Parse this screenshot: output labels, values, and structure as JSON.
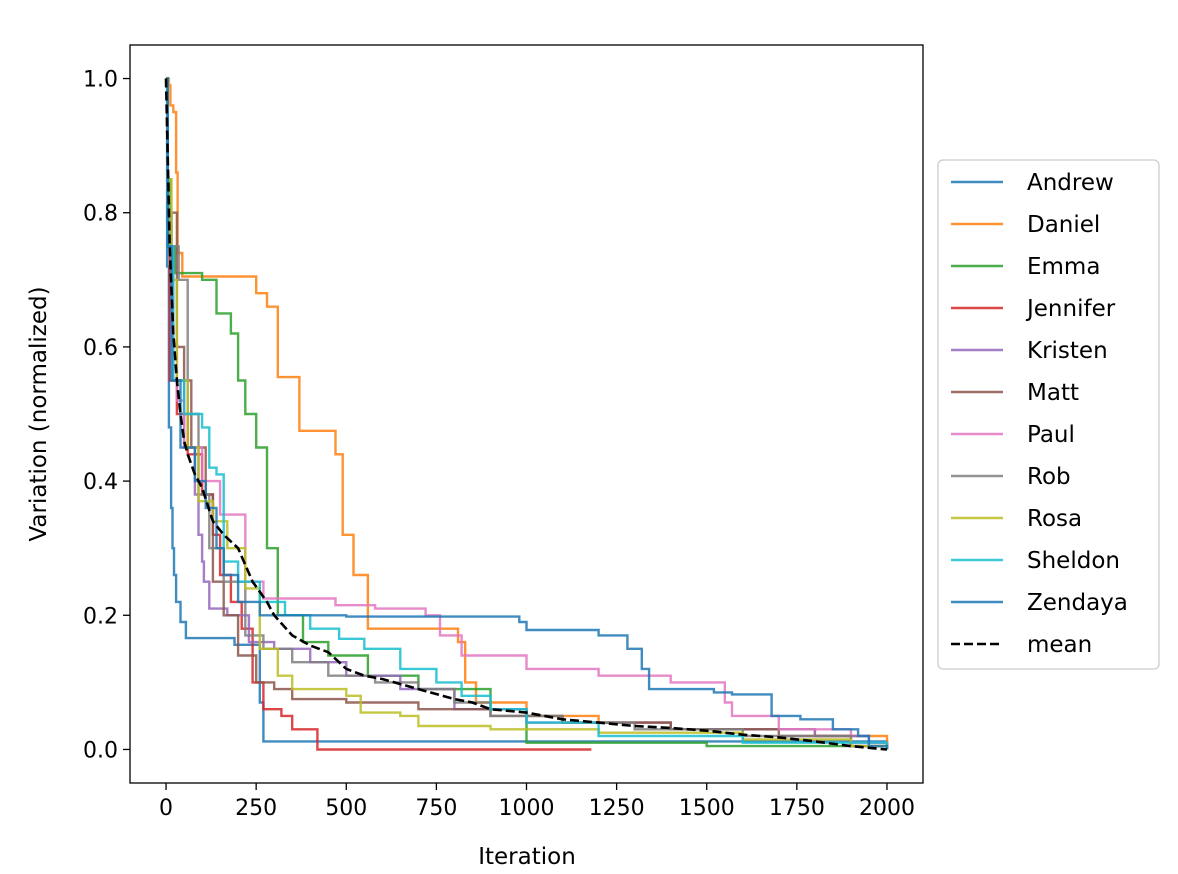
{
  "chart_data": {
    "type": "line",
    "title": "",
    "xlabel": "Iteration",
    "ylabel": "Variation (normalized)",
    "xlim": [
      -100,
      2100
    ],
    "ylim": [
      -0.05,
      1.05
    ],
    "xticks": [
      0,
      250,
      500,
      750,
      1000,
      1250,
      1500,
      1750,
      2000
    ],
    "xtick_labels": [
      "0",
      "250",
      "500",
      "750",
      "1000",
      "1250",
      "1500",
      "1750",
      "2000"
    ],
    "yticks": [
      0.0,
      0.2,
      0.4,
      0.6,
      0.8,
      1.0
    ],
    "ytick_labels": [
      "0.0",
      "0.2",
      "0.4",
      "0.6",
      "0.8",
      "1.0"
    ],
    "grid": false,
    "legend_position": "outside-right",
    "series": [
      {
        "name": "Andrew",
        "color": "#1f77b4",
        "style": "solid",
        "step": true,
        "points": [
          [
            0,
            1.0
          ],
          [
            3,
            0.72
          ],
          [
            8,
            0.48
          ],
          [
            14,
            0.36
          ],
          [
            18,
            0.3
          ],
          [
            22,
            0.26
          ],
          [
            28,
            0.22
          ],
          [
            40,
            0.19
          ],
          [
            55,
            0.166
          ],
          [
            190,
            0.156
          ],
          [
            260,
            0.07
          ],
          [
            270,
            0.012
          ],
          [
            2000,
            0.0
          ]
        ]
      },
      {
        "name": "Daniel",
        "color": "#ff7f0e",
        "style": "solid",
        "step": true,
        "points": [
          [
            0,
            1.0
          ],
          [
            8,
            0.99
          ],
          [
            12,
            0.96
          ],
          [
            20,
            0.95
          ],
          [
            28,
            0.86
          ],
          [
            32,
            0.74
          ],
          [
            45,
            0.705
          ],
          [
            250,
            0.68
          ],
          [
            280,
            0.66
          ],
          [
            310,
            0.555
          ],
          [
            370,
            0.475
          ],
          [
            470,
            0.44
          ],
          [
            490,
            0.32
          ],
          [
            520,
            0.26
          ],
          [
            560,
            0.18
          ],
          [
            810,
            0.16
          ],
          [
            830,
            0.1
          ],
          [
            860,
            0.07
          ],
          [
            1000,
            0.05
          ],
          [
            1200,
            0.04
          ],
          [
            1400,
            0.03
          ],
          [
            1800,
            0.02
          ],
          [
            2000,
            0.0
          ]
        ]
      },
      {
        "name": "Emma",
        "color": "#2ca02c",
        "style": "solid",
        "step": true,
        "points": [
          [
            0,
            1.0
          ],
          [
            5,
            0.85
          ],
          [
            12,
            0.75
          ],
          [
            25,
            0.71
          ],
          [
            100,
            0.7
          ],
          [
            140,
            0.65
          ],
          [
            180,
            0.62
          ],
          [
            200,
            0.55
          ],
          [
            220,
            0.5
          ],
          [
            250,
            0.45
          ],
          [
            280,
            0.3
          ],
          [
            310,
            0.2
          ],
          [
            380,
            0.16
          ],
          [
            450,
            0.14
          ],
          [
            560,
            0.11
          ],
          [
            700,
            0.09
          ],
          [
            900,
            0.06
          ],
          [
            1000,
            0.01
          ],
          [
            1500,
            0.005
          ],
          [
            2000,
            0.0
          ]
        ]
      },
      {
        "name": "Jennifer",
        "color": "#d62728",
        "style": "solid",
        "step": true,
        "points": [
          [
            0,
            1.0
          ],
          [
            5,
            0.75
          ],
          [
            10,
            0.55
          ],
          [
            30,
            0.5
          ],
          [
            60,
            0.44
          ],
          [
            100,
            0.38
          ],
          [
            130,
            0.32
          ],
          [
            150,
            0.26
          ],
          [
            180,
            0.22
          ],
          [
            210,
            0.18
          ],
          [
            240,
            0.1
          ],
          [
            270,
            0.06
          ],
          [
            320,
            0.05
          ],
          [
            350,
            0.03
          ],
          [
            420,
            0.0
          ],
          [
            1180,
            0.0
          ]
        ]
      },
      {
        "name": "Kristen",
        "color": "#9467bd",
        "style": "solid",
        "step": true,
        "points": [
          [
            0,
            1.0
          ],
          [
            5,
            0.75
          ],
          [
            20,
            0.55
          ],
          [
            50,
            0.45
          ],
          [
            80,
            0.38
          ],
          [
            90,
            0.32
          ],
          [
            100,
            0.28
          ],
          [
            105,
            0.25
          ],
          [
            120,
            0.21
          ],
          [
            170,
            0.2
          ],
          [
            230,
            0.16
          ],
          [
            300,
            0.15
          ],
          [
            400,
            0.13
          ],
          [
            500,
            0.11
          ],
          [
            650,
            0.09
          ],
          [
            800,
            0.06
          ],
          [
            1000,
            0.04
          ],
          [
            1400,
            0.03
          ],
          [
            1800,
            0.02
          ],
          [
            1950,
            0.01
          ],
          [
            2000,
            0.0
          ]
        ]
      },
      {
        "name": "Matt",
        "color": "#8c564b",
        "style": "solid",
        "step": true,
        "points": [
          [
            0,
            1.0
          ],
          [
            5,
            0.8
          ],
          [
            30,
            0.6
          ],
          [
            50,
            0.55
          ],
          [
            70,
            0.45
          ],
          [
            110,
            0.38
          ],
          [
            130,
            0.25
          ],
          [
            160,
            0.2
          ],
          [
            200,
            0.14
          ],
          [
            250,
            0.1
          ],
          [
            300,
            0.09
          ],
          [
            350,
            0.075
          ],
          [
            500,
            0.07
          ],
          [
            700,
            0.06
          ],
          [
            900,
            0.05
          ],
          [
            1100,
            0.04
          ],
          [
            1400,
            0.03
          ],
          [
            1700,
            0.02
          ],
          [
            1900,
            0.005
          ],
          [
            2000,
            0.0
          ]
        ]
      },
      {
        "name": "Paul",
        "color": "#e377c2",
        "style": "solid",
        "step": true,
        "points": [
          [
            0,
            1.0
          ],
          [
            5,
            0.8
          ],
          [
            15,
            0.6
          ],
          [
            30,
            0.52
          ],
          [
            50,
            0.45
          ],
          [
            100,
            0.4
          ],
          [
            150,
            0.35
          ],
          [
            220,
            0.25
          ],
          [
            270,
            0.225
          ],
          [
            470,
            0.215
          ],
          [
            580,
            0.21
          ],
          [
            720,
            0.2
          ],
          [
            760,
            0.17
          ],
          [
            820,
            0.14
          ],
          [
            1000,
            0.12
          ],
          [
            1200,
            0.11
          ],
          [
            1400,
            0.1
          ],
          [
            1550,
            0.07
          ],
          [
            1570,
            0.05
          ],
          [
            1700,
            0.03
          ],
          [
            1900,
            0.01
          ],
          [
            2000,
            0.0
          ]
        ]
      },
      {
        "name": "Rob",
        "color": "#7f7f7f",
        "style": "solid",
        "step": true,
        "points": [
          [
            0,
            1.0
          ],
          [
            5,
            0.8
          ],
          [
            15,
            0.75
          ],
          [
            35,
            0.7
          ],
          [
            60,
            0.5
          ],
          [
            90,
            0.38
          ],
          [
            120,
            0.3
          ],
          [
            160,
            0.25
          ],
          [
            220,
            0.17
          ],
          [
            270,
            0.15
          ],
          [
            350,
            0.13
          ],
          [
            450,
            0.11
          ],
          [
            580,
            0.1
          ],
          [
            700,
            0.09
          ],
          [
            800,
            0.07
          ],
          [
            900,
            0.05
          ],
          [
            1100,
            0.04
          ],
          [
            1300,
            0.03
          ],
          [
            1600,
            0.02
          ],
          [
            1900,
            0.005
          ],
          [
            2000,
            0.0
          ]
        ]
      },
      {
        "name": "Rosa",
        "color": "#bcbd22",
        "style": "solid",
        "step": true,
        "points": [
          [
            0,
            1.0
          ],
          [
            5,
            0.85
          ],
          [
            15,
            0.7
          ],
          [
            30,
            0.55
          ],
          [
            60,
            0.45
          ],
          [
            90,
            0.37
          ],
          [
            130,
            0.34
          ],
          [
            170,
            0.3
          ],
          [
            220,
            0.24
          ],
          [
            260,
            0.15
          ],
          [
            310,
            0.11
          ],
          [
            350,
            0.09
          ],
          [
            500,
            0.08
          ],
          [
            540,
            0.055
          ],
          [
            650,
            0.05
          ],
          [
            700,
            0.035
          ],
          [
            900,
            0.03
          ],
          [
            1200,
            0.025
          ],
          [
            1600,
            0.015
          ],
          [
            1900,
            0.005
          ],
          [
            2000,
            0.0
          ]
        ]
      },
      {
        "name": "Sheldon",
        "color": "#17becf",
        "style": "solid",
        "step": true,
        "points": [
          [
            0,
            1.0
          ],
          [
            5,
            0.75
          ],
          [
            20,
            0.55
          ],
          [
            50,
            0.5
          ],
          [
            100,
            0.48
          ],
          [
            120,
            0.42
          ],
          [
            140,
            0.41
          ],
          [
            160,
            0.28
          ],
          [
            200,
            0.25
          ],
          [
            260,
            0.22
          ],
          [
            330,
            0.2
          ],
          [
            400,
            0.18
          ],
          [
            480,
            0.165
          ],
          [
            550,
            0.15
          ],
          [
            650,
            0.12
          ],
          [
            750,
            0.1
          ],
          [
            820,
            0.08
          ],
          [
            900,
            0.06
          ],
          [
            1000,
            0.04
          ],
          [
            1200,
            0.02
          ],
          [
            1600,
            0.01
          ],
          [
            2000,
            0.0
          ]
        ]
      },
      {
        "name": "Zendaya",
        "color": "#1f77b4",
        "style": "solid",
        "step": true,
        "points": [
          [
            0,
            1.0
          ],
          [
            5,
            0.75
          ],
          [
            15,
            0.55
          ],
          [
            40,
            0.45
          ],
          [
            80,
            0.4
          ],
          [
            110,
            0.36
          ],
          [
            140,
            0.3
          ],
          [
            160,
            0.26
          ],
          [
            200,
            0.22
          ],
          [
            260,
            0.2
          ],
          [
            500,
            0.198
          ],
          [
            980,
            0.19
          ],
          [
            1000,
            0.178
          ],
          [
            1200,
            0.17
          ],
          [
            1280,
            0.15
          ],
          [
            1320,
            0.12
          ],
          [
            1340,
            0.09
          ],
          [
            1520,
            0.085
          ],
          [
            1570,
            0.082
          ],
          [
            1680,
            0.05
          ],
          [
            1760,
            0.045
          ],
          [
            1850,
            0.03
          ],
          [
            1920,
            0.02
          ],
          [
            1950,
            0.005
          ],
          [
            2000,
            0.0
          ]
        ]
      },
      {
        "name": "mean",
        "color": "#000000",
        "style": "dashed",
        "step": false,
        "points": [
          [
            0,
            1.0
          ],
          [
            10,
            0.75
          ],
          [
            20,
            0.62
          ],
          [
            30,
            0.55
          ],
          [
            40,
            0.5
          ],
          [
            50,
            0.46
          ],
          [
            60,
            0.44
          ],
          [
            80,
            0.41
          ],
          [
            100,
            0.39
          ],
          [
            130,
            0.34
          ],
          [
            160,
            0.32
          ],
          [
            200,
            0.3
          ],
          [
            240,
            0.25
          ],
          [
            280,
            0.22
          ],
          [
            300,
            0.2
          ],
          [
            350,
            0.17
          ],
          [
            400,
            0.155
          ],
          [
            450,
            0.145
          ],
          [
            500,
            0.12
          ],
          [
            550,
            0.11
          ],
          [
            600,
            0.105
          ],
          [
            700,
            0.09
          ],
          [
            800,
            0.075
          ],
          [
            850,
            0.07
          ],
          [
            900,
            0.06
          ],
          [
            1000,
            0.055
          ],
          [
            1100,
            0.045
          ],
          [
            1200,
            0.04
          ],
          [
            1300,
            0.035
          ],
          [
            1400,
            0.032
          ],
          [
            1500,
            0.028
          ],
          [
            1600,
            0.022
          ],
          [
            1700,
            0.018
          ],
          [
            1800,
            0.012
          ],
          [
            1900,
            0.005
          ],
          [
            2000,
            0.0
          ]
        ]
      }
    ]
  }
}
